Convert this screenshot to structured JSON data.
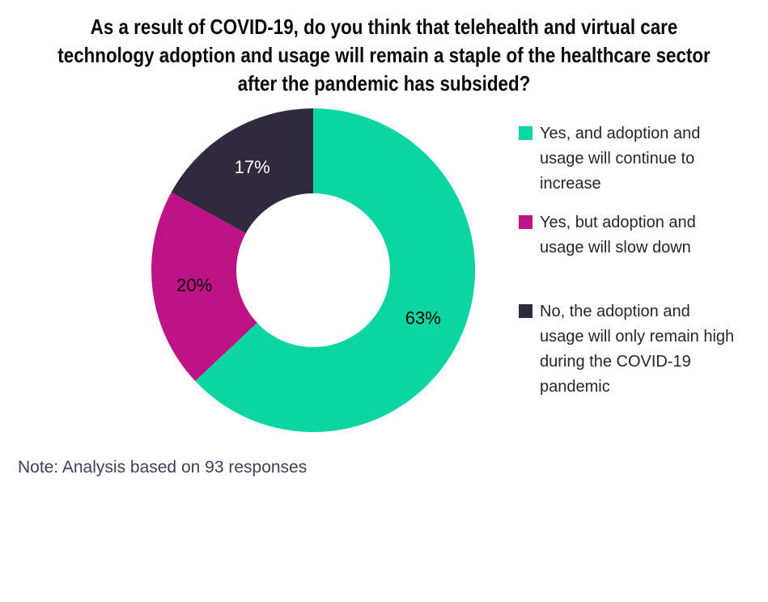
{
  "title": {
    "lines": [
      "As a result of COVID-19, do you think that telehealth and virtual care",
      "technology adoption and usage will remain a staple of the healthcare sector",
      "after the pandemic has subsided?"
    ]
  },
  "chart_data": {
    "type": "pie",
    "subtype": "donut",
    "title": "As a result of COVID-19, do you think that telehealth and virtual care technology adoption and usage will remain a staple of the healthcare sector after the pandemic has subsided?",
    "categories": [
      "Yes, and adoption and usage will continue to increase",
      "Yes, but adoption and usage will slow down",
      "No, the adoption and usage will only remain high during the COVID-19 pandemic"
    ],
    "values": [
      63,
      20,
      17
    ],
    "unit": "%",
    "data_labels": [
      "63%",
      "20%",
      "17%"
    ],
    "data_label_colors": [
      "#000000",
      "#000000",
      "#ffffff"
    ],
    "slice_colors": [
      "#0bd6a1",
      "#be1287",
      "#2f2a3e"
    ],
    "start_angle_deg": 0,
    "direction": "clockwise",
    "donut_hole_ratio": 0.475,
    "legend_position": "right",
    "grid": false,
    "note": "Note: Analysis based on 93 responses"
  },
  "legend": {
    "items": [
      {
        "color": "#0bd6a1",
        "lines": [
          "Yes, and adoption and",
          "usage will continue to",
          "increase"
        ]
      },
      {
        "color": "#be1287",
        "lines": [
          "Yes, but adoption and",
          "usage will slow down"
        ]
      },
      {
        "color": "#2f2a3e",
        "lines": [
          "No, the adoption and",
          "usage will only remain high",
          "during the COVID-19",
          "pandemic"
        ]
      }
    ]
  },
  "note": {
    "text": "Note: Analysis based on 93 responses"
  }
}
